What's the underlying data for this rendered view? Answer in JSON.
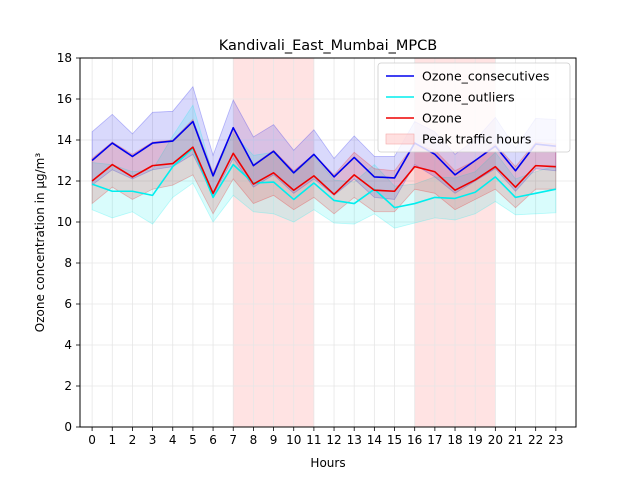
{
  "chart_data": {
    "type": "line",
    "title": "Kandivali_East_Mumbai_MPCB",
    "xlabel": "Hours",
    "ylabel": "Ozone concentration in µg/m³",
    "xlim": [
      -0.6,
      24.0
    ],
    "ylim": [
      0,
      18
    ],
    "grid": true,
    "legend_position": "top-right",
    "x": [
      0,
      1,
      2,
      3,
      4,
      5,
      6,
      7,
      8,
      9,
      10,
      11,
      12,
      13,
      14,
      15,
      16,
      17,
      18,
      19,
      20,
      21,
      22,
      23
    ],
    "x_ticks": [
      "0",
      "1",
      "2",
      "3",
      "4",
      "5",
      "6",
      "7",
      "8",
      "9",
      "10",
      "11",
      "12",
      "13",
      "14",
      "15",
      "16",
      "17",
      "18",
      "19",
      "20",
      "21",
      "22",
      "23"
    ],
    "y_ticks": [
      "0",
      "2",
      "4",
      "6",
      "8",
      "10",
      "12",
      "14",
      "16",
      "18"
    ],
    "peak_traffic_hours": [
      [
        7,
        11
      ],
      [
        16,
        20
      ]
    ],
    "peak_traffic_label": "Peak traffic hours",
    "peak_traffic_color": "#ffcccc",
    "series": [
      {
        "name": "Ozone_consecutives",
        "color": "#0000ee",
        "values": [
          13.0,
          13.85,
          13.2,
          13.85,
          13.95,
          14.9,
          12.25,
          14.6,
          12.75,
          13.45,
          12.4,
          13.3,
          12.2,
          13.15,
          12.2,
          12.15,
          13.85,
          13.3,
          12.3,
          13.0,
          13.7,
          12.5,
          13.8,
          13.7
        ],
        "lower": [
          11.8,
          12.55,
          12.1,
          12.55,
          12.7,
          13.3,
          11.3,
          13.1,
          11.7,
          12.3,
          11.4,
          12.1,
          11.3,
          12.1,
          11.2,
          11.1,
          12.8,
          12.2,
          11.4,
          12.0,
          12.6,
          11.5,
          12.6,
          12.5
        ],
        "upper": [
          14.4,
          15.25,
          14.3,
          15.35,
          15.4,
          16.6,
          13.25,
          15.95,
          14.15,
          14.75,
          13.5,
          14.5,
          13.1,
          14.2,
          13.2,
          13.2,
          14.9,
          14.4,
          13.3,
          14.0,
          15.1,
          13.6,
          15.05,
          15.0
        ]
      },
      {
        "name": "Ozone_outliers",
        "color": "#00eeee",
        "values": [
          11.85,
          11.5,
          11.5,
          11.3,
          12.7,
          13.6,
          11.2,
          12.8,
          11.9,
          11.95,
          11.1,
          11.9,
          11.05,
          10.9,
          11.6,
          10.7,
          10.9,
          11.2,
          11.15,
          11.45,
          12.2,
          11.2,
          11.4,
          11.6
        ],
        "lower": [
          10.6,
          10.2,
          10.5,
          9.9,
          11.2,
          11.9,
          10.0,
          11.3,
          10.5,
          10.4,
          10.0,
          10.6,
          9.95,
          9.9,
          10.4,
          9.7,
          9.95,
          10.2,
          10.1,
          10.4,
          11.0,
          10.35,
          10.4,
          10.45
        ],
        "upper": [
          12.9,
          12.8,
          12.45,
          12.55,
          14.2,
          15.7,
          12.3,
          14.3,
          13.25,
          13.4,
          12.35,
          13.2,
          12.05,
          11.95,
          12.8,
          11.75,
          11.85,
          12.2,
          12.15,
          12.45,
          13.4,
          12.1,
          12.45,
          12.75
        ]
      },
      {
        "name": "Ozone",
        "color": "#ee0000",
        "values": [
          12.0,
          12.8,
          12.2,
          12.75,
          12.85,
          13.65,
          11.4,
          13.35,
          11.85,
          12.4,
          11.55,
          12.25,
          11.35,
          12.3,
          11.55,
          11.5,
          12.7,
          12.45,
          11.55,
          12.05,
          12.7,
          11.7,
          12.75,
          12.7
        ],
        "lower": [
          10.9,
          11.7,
          11.1,
          11.6,
          11.8,
          12.3,
          10.4,
          12.1,
          10.9,
          11.3,
          10.6,
          11.2,
          10.4,
          11.2,
          10.5,
          10.5,
          11.6,
          11.4,
          10.6,
          11.1,
          11.6,
          10.7,
          11.6,
          11.6
        ],
        "upper": [
          13.1,
          13.9,
          13.3,
          13.9,
          14.0,
          15.0,
          12.4,
          14.6,
          12.8,
          13.5,
          12.5,
          13.3,
          12.3,
          13.4,
          12.6,
          12.5,
          13.8,
          13.5,
          12.5,
          13.0,
          13.8,
          12.7,
          13.9,
          13.8
        ]
      }
    ]
  }
}
